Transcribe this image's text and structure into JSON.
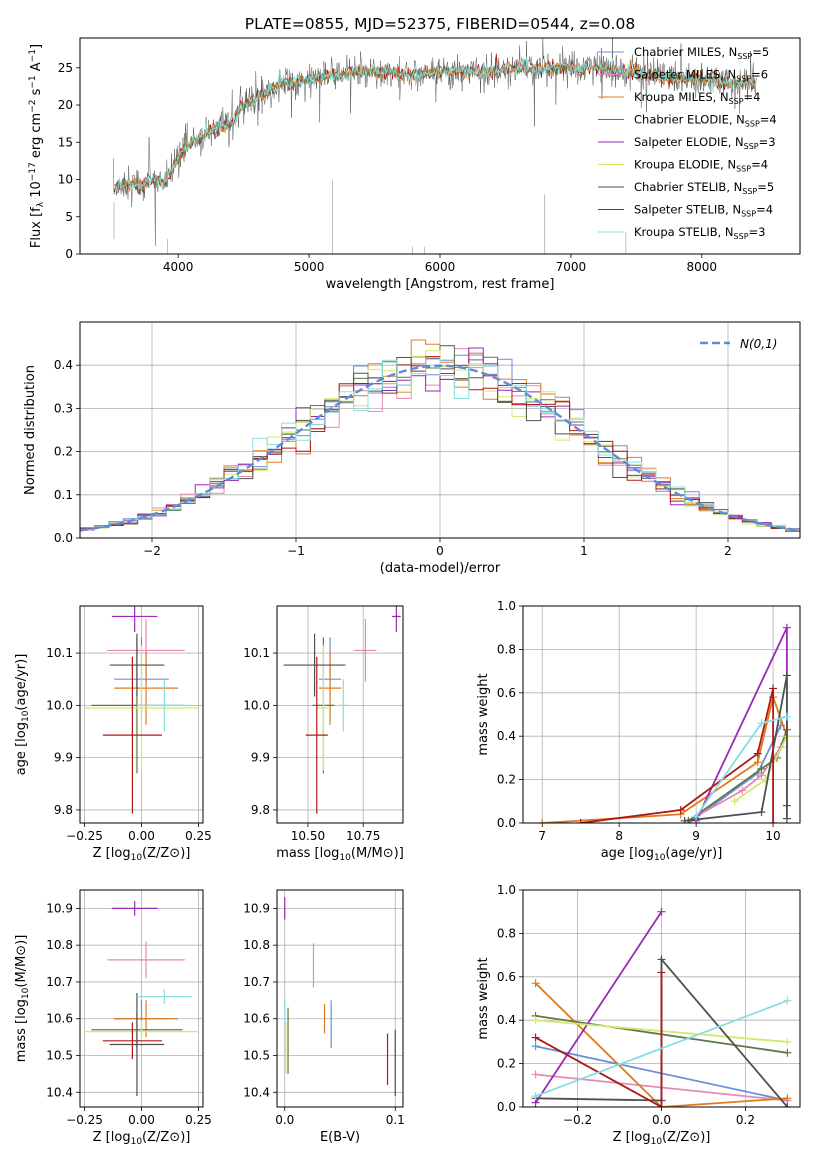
{
  "figure_title": "PLATE=0855, MJD=52375, FIBERID=0544, z=0.08",
  "models": [
    {
      "name": "Chabrier MILES",
      "nssp": "5",
      "color": "#6b8fd6"
    },
    {
      "name": "Salpeter MILES",
      "nssp": "6",
      "color": "#e58ab5"
    },
    {
      "name": "Kroupa MILES",
      "nssp": "4",
      "color": "#e07b1d"
    },
    {
      "name": "Chabrier ELODIE",
      "nssp": "4",
      "color": "#5c7a4b"
    },
    {
      "name": "Salpeter ELODIE",
      "nssp": "3",
      "color": "#9a2ab5"
    },
    {
      "name": "Kroupa ELODIE",
      "nssp": "4",
      "color": "#d4e86a"
    },
    {
      "name": "Chabrier STELIB",
      "nssp": "5",
      "color": "#505050"
    },
    {
      "name": "Salpeter STELIB",
      "nssp": "4",
      "color": "#b01818"
    },
    {
      "name": "Kroupa STELIB",
      "nssp": "3",
      "color": "#86dfe0"
    }
  ],
  "chart_data": [
    {
      "id": "spectrum",
      "type": "line",
      "title": "PLATE=0855, MJD=52375, FIBERID=0544, z=0.08",
      "xlabel": "wavelength [Angstrom, rest frame]",
      "ylabel": "Flux [f_λ 10^-17 erg cm^-2 s^-1 A^-1]",
      "xlim": [
        3250,
        8750
      ],
      "ylim": [
        0,
        29
      ],
      "xticks": [
        4000,
        5000,
        6000,
        7000,
        8000
      ],
      "yticks": [
        0,
        5,
        10,
        15,
        20,
        25
      ],
      "legend_position": "right",
      "continuum": [
        [
          3500,
          8.5
        ],
        [
          3600,
          9.5
        ],
        [
          3700,
          9
        ],
        [
          3800,
          10
        ],
        [
          3900,
          9.5
        ],
        [
          4000,
          13
        ],
        [
          4100,
          15
        ],
        [
          4200,
          16
        ],
        [
          4300,
          17
        ],
        [
          4400,
          17.5
        ],
        [
          4500,
          20
        ],
        [
          4600,
          21
        ],
        [
          4700,
          22
        ],
        [
          4800,
          23
        ],
        [
          4900,
          23
        ],
        [
          5000,
          23.5
        ],
        [
          5200,
          24
        ],
        [
          5400,
          24.5
        ],
        [
          5600,
          24.5
        ],
        [
          5800,
          24
        ],
        [
          6000,
          24.5
        ],
        [
          6200,
          24.5
        ],
        [
          6400,
          24.5
        ],
        [
          6600,
          25
        ],
        [
          6800,
          25
        ],
        [
          7000,
          25
        ],
        [
          7200,
          25
        ],
        [
          7400,
          24.5
        ],
        [
          7600,
          24
        ],
        [
          7800,
          23.5
        ],
        [
          8000,
          23.5
        ],
        [
          8200,
          23
        ],
        [
          8400,
          23
        ]
      ]
    },
    {
      "id": "residuals",
      "type": "histogram",
      "xlabel": "(data-model)/error",
      "ylabel": "Normed distribution",
      "xlim": [
        -2.5,
        2.5
      ],
      "ylim": [
        0,
        0.5
      ],
      "xticks": [
        -2,
        -1,
        0,
        1,
        2
      ],
      "yticks": [
        0.0,
        0.1,
        0.2,
        0.3,
        0.4
      ],
      "legend_label": "N(0,1)",
      "legend_position": "top-right",
      "bin_width": 0.1,
      "reference_curve": "gaussian mean 0 sigma 1"
    },
    {
      "id": "age-vs-Z",
      "type": "scatter",
      "xlabel": "Z [log10(Z/Z⊙)]",
      "ylabel": "age [log10(age/yr)]",
      "xlim": [
        -0.27,
        0.27
      ],
      "ylim": [
        9.775,
        10.19
      ],
      "xticks": [
        -0.25,
        0.0,
        0.25
      ],
      "yticks": [
        9.8,
        9.9,
        10.0,
        10.1
      ],
      "points": [
        {
          "model": 0,
          "x": 0.0,
          "xerr": 0.12,
          "y": 10.05,
          "yerr": 0.08
        },
        {
          "model": 1,
          "x": 0.02,
          "xerr": 0.17,
          "y": 10.105,
          "yerr": 0.06
        },
        {
          "model": 2,
          "x": 0.02,
          "xerr": 0.14,
          "y": 10.033,
          "yerr": 0.07
        },
        {
          "model": 3,
          "x": -0.02,
          "xerr": 0.2,
          "y": 10.0,
          "yerr": 0.13
        },
        {
          "model": 4,
          "x": -0.03,
          "xerr": 0.1,
          "y": 10.17,
          "yerr": 0.03
        },
        {
          "model": 5,
          "x": 0.0,
          "xerr": 0.25,
          "y": 9.995,
          "yerr": 0.12
        },
        {
          "model": 6,
          "x": -0.02,
          "xerr": 0.12,
          "y": 10.077,
          "yerr": 0.06
        },
        {
          "model": 7,
          "x": -0.04,
          "xerr": 0.13,
          "y": 9.943,
          "yerr": 0.15
        },
        {
          "model": 8,
          "x": 0.1,
          "xerr": 0.12,
          "y": 10.0,
          "yerr": 0.05
        }
      ]
    },
    {
      "id": "age-vs-mass",
      "type": "scatter",
      "xlabel": "mass [log10(M/M⊙)]",
      "ylabel": "",
      "xlim": [
        10.36,
        10.93
      ],
      "ylim": [
        9.775,
        10.19
      ],
      "xticks": [
        10.5,
        10.75
      ],
      "yticks": [
        9.8,
        9.9,
        10.0,
        10.1
      ],
      "points": [
        {
          "model": 0,
          "x": 10.6,
          "xerr": 0.05,
          "y": 10.05,
          "yerr": 0.08
        },
        {
          "model": 1,
          "x": 10.76,
          "xerr": 0.05,
          "y": 10.105,
          "yerr": 0.06
        },
        {
          "model": 2,
          "x": 10.6,
          "xerr": 0.05,
          "y": 10.033,
          "yerr": 0.07
        },
        {
          "model": 3,
          "x": 10.57,
          "xerr": 0.05,
          "y": 10.0,
          "yerr": 0.13
        },
        {
          "model": 4,
          "x": 10.9,
          "xerr": 0.02,
          "y": 10.17,
          "yerr": 0.03
        },
        {
          "model": 5,
          "x": 10.57,
          "xerr": 0.03,
          "y": 9.995,
          "yerr": 0.12
        },
        {
          "model": 6,
          "x": 10.53,
          "xerr": 0.14,
          "y": 10.077,
          "yerr": 0.06
        },
        {
          "model": 7,
          "x": 10.54,
          "xerr": 0.05,
          "y": 9.943,
          "yerr": 0.15
        },
        {
          "model": 8,
          "x": 10.66,
          "xerr": 0.02,
          "y": 10.0,
          "yerr": 0.05
        }
      ]
    },
    {
      "id": "sfh-age",
      "type": "line",
      "xlabel": "age [log10(age/yr)]",
      "ylabel": "mass weight",
      "xlim": [
        6.75,
        10.35
      ],
      "ylim": [
        0,
        1.0
      ],
      "xticks": [
        7,
        8,
        9,
        10
      ],
      "yticks": [
        0.0,
        0.2,
        0.4,
        0.6,
        0.8,
        1.0
      ],
      "series": [
        {
          "model": 0,
          "points": [
            [
              8.9,
              0.0
            ],
            [
              9.8,
              0.23
            ],
            [
              10.1,
              0.45
            ]
          ]
        },
        {
          "model": 1,
          "points": [
            [
              8.9,
              0.01
            ],
            [
              9.6,
              0.15
            ],
            [
              9.85,
              0.22
            ],
            [
              10.1,
              0.35
            ]
          ]
        },
        {
          "model": 2,
          "points": [
            [
              7.0,
              0.0
            ],
            [
              8.8,
              0.04
            ],
            [
              9.8,
              0.28
            ],
            [
              10.0,
              0.58
            ],
            [
              10.18,
              0.4
            ]
          ]
        },
        {
          "model": 3,
          "points": [
            [
              8.9,
              0.01
            ],
            [
              9.85,
              0.25
            ],
            [
              10.05,
              0.3
            ],
            [
              10.18,
              0.43
            ]
          ]
        },
        {
          "model": 4,
          "points": [
            [
              9.0,
              0.01
            ],
            [
              10.18,
              0.9
            ],
            [
              10.18,
              0.08
            ]
          ]
        },
        {
          "model": 5,
          "points": [
            [
              9.5,
              0.1
            ],
            [
              9.9,
              0.2
            ],
            [
              10.18,
              0.4
            ]
          ]
        },
        {
          "model": 6,
          "points": [
            [
              8.85,
              0.01
            ],
            [
              9.85,
              0.05
            ],
            [
              10.18,
              0.68
            ],
            [
              10.18,
              0.02
            ]
          ]
        },
        {
          "model": 7,
          "points": [
            [
              7.5,
              0.0
            ],
            [
              8.8,
              0.06
            ],
            [
              9.8,
              0.32
            ],
            [
              10.0,
              0.62
            ],
            [
              10.0,
              0.0
            ]
          ]
        },
        {
          "model": 8,
          "points": [
            [
              9.0,
              0.03
            ],
            [
              9.85,
              0.46
            ],
            [
              10.18,
              0.49
            ]
          ]
        }
      ]
    },
    {
      "id": "mass-vs-Z",
      "type": "scatter",
      "xlabel": "Z [log10(Z/Z⊙)]",
      "ylabel": "mass [log10(M/M⊙)]",
      "xlim": [
        -0.27,
        0.27
      ],
      "ylim": [
        10.36,
        10.95
      ],
      "xticks": [
        -0.25,
        0.0,
        0.25
      ],
      "yticks": [
        10.4,
        10.5,
        10.6,
        10.7,
        10.8,
        10.9
      ],
      "points": [
        {
          "model": 0,
          "x": 0.0,
          "xerr": 0.12,
          "y": 10.6,
          "yerr": 0.05
        },
        {
          "model": 1,
          "x": 0.02,
          "xerr": 0.17,
          "y": 10.76,
          "yerr": 0.05
        },
        {
          "model": 2,
          "x": 0.02,
          "xerr": 0.14,
          "y": 10.6,
          "yerr": 0.05
        },
        {
          "model": 3,
          "x": -0.02,
          "xerr": 0.2,
          "y": 10.57,
          "yerr": 0.05
        },
        {
          "model": 4,
          "x": -0.03,
          "xerr": 0.1,
          "y": 10.9,
          "yerr": 0.02
        },
        {
          "model": 5,
          "x": 0.0,
          "xerr": 0.25,
          "y": 10.565,
          "yerr": 0.03
        },
        {
          "model": 6,
          "x": -0.02,
          "xerr": 0.12,
          "y": 10.53,
          "yerr": 0.14
        },
        {
          "model": 7,
          "x": -0.04,
          "xerr": 0.13,
          "y": 10.54,
          "yerr": 0.05
        },
        {
          "model": 8,
          "x": 0.1,
          "xerr": 0.12,
          "y": 10.66,
          "yerr": 0.02
        }
      ]
    },
    {
      "id": "mass-vs-EBV",
      "type": "scatter",
      "xlabel": "E(B-V)",
      "ylabel": "",
      "xlim": [
        -0.007,
        0.107
      ],
      "ylim": [
        10.36,
        10.95
      ],
      "xticks": [
        0.0,
        0.1
      ],
      "yticks": [
        10.4,
        10.5,
        10.6,
        10.7,
        10.8,
        10.9
      ],
      "points": [
        {
          "model": 0,
          "x": 0.042,
          "xerr": 0,
          "y": 10.585,
          "yerr": 0.065
        },
        {
          "model": 1,
          "x": 0.026,
          "xerr": 0,
          "y": 10.745,
          "yerr": 0.06
        },
        {
          "model": 2,
          "x": 0.036,
          "xerr": 0,
          "y": 10.6,
          "yerr": 0.04
        },
        {
          "model": 3,
          "x": 0.003,
          "xerr": 0,
          "y": 10.54,
          "yerr": 0.09
        },
        {
          "model": 4,
          "x": 0.0,
          "xerr": 0,
          "y": 10.9,
          "yerr": 0.03
        },
        {
          "model": 5,
          "x": 0.001,
          "xerr": 0,
          "y": 10.52,
          "yerr": 0.07
        },
        {
          "model": 6,
          "x": 0.1,
          "xerr": 0,
          "y": 10.48,
          "yerr": 0.09
        },
        {
          "model": 7,
          "x": 0.093,
          "xerr": 0,
          "y": 10.49,
          "yerr": 0.07
        },
        {
          "model": 8,
          "x": 0.0,
          "xerr": 0,
          "y": 10.62,
          "yerr": 0.04
        }
      ]
    },
    {
      "id": "sfh-Z",
      "type": "line",
      "xlabel": "Z [log10(Z/Z⊙)]",
      "ylabel": "mass weight",
      "xlim": [
        -0.33,
        0.33
      ],
      "ylim": [
        0,
        1.0
      ],
      "xticks": [
        -0.2,
        0.0,
        0.2
      ],
      "yticks": [
        0.0,
        0.2,
        0.4,
        0.6,
        0.8,
        1.0
      ],
      "series": [
        {
          "model": 0,
          "points": [
            [
              -0.3,
              0.28
            ],
            [
              0.3,
              0.03
            ]
          ]
        },
        {
          "model": 1,
          "points": [
            [
              -0.3,
              0.15
            ],
            [
              0.3,
              0.03
            ]
          ]
        },
        {
          "model": 2,
          "points": [
            [
              -0.3,
              0.57
            ],
            [
              0.0,
              0.0
            ],
            [
              0.3,
              0.04
            ]
          ]
        },
        {
          "model": 3,
          "points": [
            [
              -0.3,
              0.42
            ],
            [
              0.3,
              0.25
            ]
          ]
        },
        {
          "model": 4,
          "points": [
            [
              -0.3,
              0.02
            ],
            [
              0.0,
              0.9
            ]
          ]
        },
        {
          "model": 5,
          "points": [
            [
              -0.3,
              0.4
            ],
            [
              0.3,
              0.3
            ]
          ]
        },
        {
          "model": 6,
          "points": [
            [
              -0.3,
              0.04
            ],
            [
              0.0,
              0.03
            ],
            [
              0.0,
              0.68
            ],
            [
              0.3,
              0.0
            ]
          ]
        },
        {
          "model": 7,
          "points": [
            [
              -0.3,
              0.32
            ],
            [
              0.0,
              0.0
            ],
            [
              0.0,
              0.62
            ]
          ]
        },
        {
          "model": 8,
          "points": [
            [
              -0.3,
              0.05
            ],
            [
              0.3,
              0.49
            ]
          ]
        }
      ]
    }
  ]
}
